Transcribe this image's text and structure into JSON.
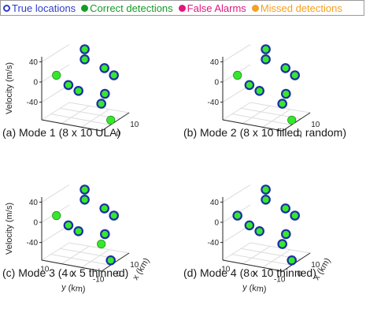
{
  "legend": [
    {
      "label": "True locations",
      "color": "#2f3cc8",
      "style": "ring"
    },
    {
      "label": "Correct detections",
      "color": "#169b25",
      "style": "filled"
    },
    {
      "label": "False Alarms",
      "color": "#e0167f",
      "style": "filled"
    },
    {
      "label": "Missed detections",
      "color": "#f5a020",
      "style": "filled"
    }
  ],
  "colors": {
    "ring": "#1c2fa6",
    "fill": "#36e82b",
    "axis": "#262626",
    "grid": "#dcdcdc"
  },
  "chart_data": [
    {
      "type": "scatter",
      "caption": "(a) Mode 1 (8 x 10 ULA)",
      "xlabel": "",
      "ylabel": "",
      "zlabel": "Velocity (m/s)",
      "y_ticks": [],
      "x_ticks": [
        "10",
        "0"
      ],
      "z_ticks": [
        "40",
        "0",
        "-40"
      ],
      "points": [
        {
          "x": -2,
          "y": 3,
          "v": 45,
          "ring": true
        },
        {
          "x": -2,
          "y": 3,
          "v": 25,
          "ring": true
        },
        {
          "x": -3,
          "y": -3,
          "v": 12,
          "ring": true
        },
        {
          "x": 0,
          "y": -8,
          "v": 10,
          "ring": true
        },
        {
          "x": 2,
          "y": 10,
          "v": -5,
          "ring": false
        },
        {
          "x": 2,
          "y": 6,
          "v": -20,
          "ring": true
        },
        {
          "x": 3,
          "y": 2,
          "v": -25,
          "ring": true
        },
        {
          "x": 0,
          "y": -5,
          "v": -30,
          "ring": true
        },
        {
          "x": 2,
          "y": -5,
          "v": -45,
          "ring": true
        },
        {
          "x": 5,
          "y": -10,
          "v": -65,
          "ring": false
        }
      ]
    },
    {
      "type": "scatter",
      "caption": "(b) Mode 2 (8 x 10 filled, random)",
      "xlabel": "",
      "ylabel": "",
      "zlabel": "",
      "y_ticks": [],
      "x_ticks": [
        "10",
        "0"
      ],
      "z_ticks": [
        "40",
        "0",
        "-40"
      ],
      "points": [
        {
          "x": -2,
          "y": 3,
          "v": 45,
          "ring": true
        },
        {
          "x": -2,
          "y": 3,
          "v": 25,
          "ring": true
        },
        {
          "x": -3,
          "y": -3,
          "v": 12,
          "ring": true
        },
        {
          "x": 0,
          "y": -8,
          "v": 10,
          "ring": true
        },
        {
          "x": 2,
          "y": 10,
          "v": -5,
          "ring": false
        },
        {
          "x": 2,
          "y": 6,
          "v": -20,
          "ring": true
        },
        {
          "x": 3,
          "y": 2,
          "v": -25,
          "ring": true
        },
        {
          "x": 0,
          "y": -5,
          "v": -30,
          "ring": true
        },
        {
          "x": 2,
          "y": -5,
          "v": -45,
          "ring": true
        },
        {
          "x": 5,
          "y": -10,
          "v": -65,
          "ring": false
        }
      ]
    },
    {
      "type": "scatter",
      "caption": "(c) Mode 3 (4 x 5 thinned)",
      "xlabel": "x (km)",
      "ylabel": "y (km)",
      "zlabel": "Velocity (m/s)",
      "y_ticks": [
        "10",
        "0",
        "-10"
      ],
      "x_ticks": [
        "10",
        "0"
      ],
      "z_ticks": [
        "40",
        "0",
        "-40"
      ],
      "points": [
        {
          "x": -2,
          "y": 3,
          "v": 45,
          "ring": true
        },
        {
          "x": -2,
          "y": 3,
          "v": 25,
          "ring": true
        },
        {
          "x": -3,
          "y": -3,
          "v": 12,
          "ring": true
        },
        {
          "x": 0,
          "y": -8,
          "v": 10,
          "ring": true
        },
        {
          "x": 2,
          "y": 10,
          "v": -5,
          "ring": false
        },
        {
          "x": 2,
          "y": 6,
          "v": -20,
          "ring": true
        },
        {
          "x": 3,
          "y": 2,
          "v": -25,
          "ring": true
        },
        {
          "x": 0,
          "y": -5,
          "v": -30,
          "ring": true
        },
        {
          "x": 2,
          "y": -5,
          "v": -45,
          "ring": false
        },
        {
          "x": 5,
          "y": -10,
          "v": -65,
          "ring": true
        }
      ]
    },
    {
      "type": "scatter",
      "caption": "(d) Mode 4 (8 x 10 thinned)",
      "xlabel": "x (km)",
      "ylabel": "y (km)",
      "zlabel": "",
      "y_ticks": [
        "10",
        "0",
        "-10"
      ],
      "x_ticks": [
        "10",
        "0"
      ],
      "z_ticks": [
        "40",
        "0",
        "-40"
      ],
      "points": [
        {
          "x": -2,
          "y": 3,
          "v": 45,
          "ring": true
        },
        {
          "x": -2,
          "y": 3,
          "v": 25,
          "ring": true
        },
        {
          "x": -3,
          "y": -3,
          "v": 12,
          "ring": true
        },
        {
          "x": 0,
          "y": -8,
          "v": 10,
          "ring": true
        },
        {
          "x": 2,
          "y": 10,
          "v": -5,
          "ring": true
        },
        {
          "x": 2,
          "y": 6,
          "v": -20,
          "ring": true
        },
        {
          "x": 3,
          "y": 2,
          "v": -25,
          "ring": true
        },
        {
          "x": 0,
          "y": -5,
          "v": -30,
          "ring": true
        },
        {
          "x": 2,
          "y": -5,
          "v": -45,
          "ring": true
        },
        {
          "x": 5,
          "y": -10,
          "v": -65,
          "ring": true
        }
      ]
    }
  ]
}
